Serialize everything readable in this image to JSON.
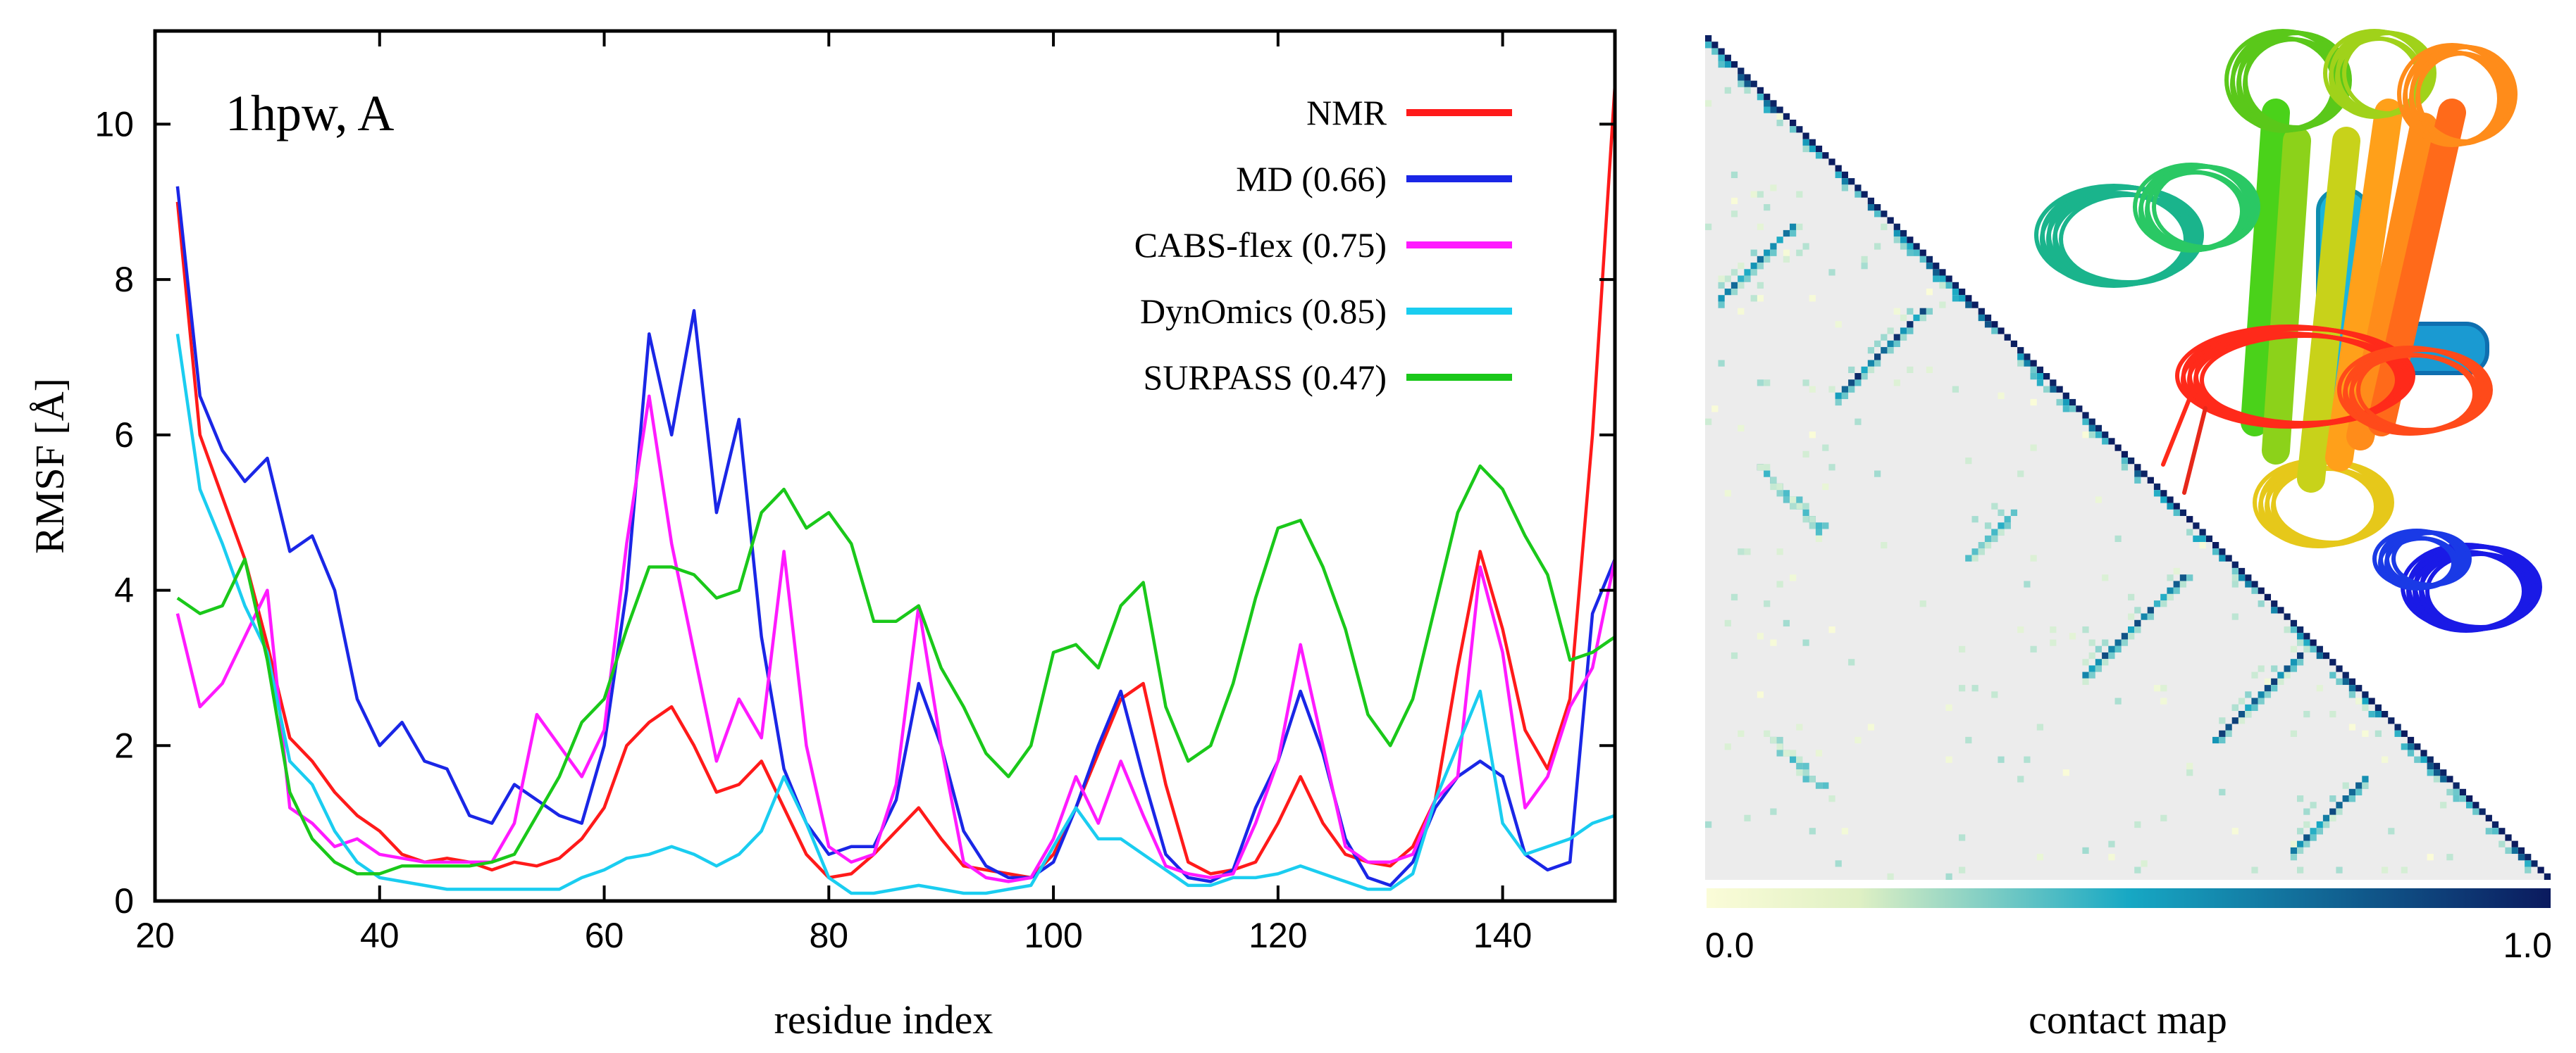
{
  "chart_data": [
    {
      "type": "line",
      "title": "1hpw, A",
      "xlabel": "residue index",
      "ylabel": "RMSF [Å]",
      "xlim": [
        20,
        150
      ],
      "ylim": [
        0,
        11.2
      ],
      "xticks": [
        20,
        40,
        60,
        80,
        100,
        120,
        140
      ],
      "yticks": [
        0,
        2,
        4,
        6,
        8,
        10
      ],
      "legend_position": "top-right",
      "x": [
        22,
        24,
        26,
        28,
        30,
        32,
        34,
        36,
        38,
        40,
        42,
        44,
        46,
        48,
        50,
        52,
        54,
        56,
        58,
        60,
        62,
        64,
        66,
        68,
        70,
        72,
        74,
        76,
        78,
        80,
        82,
        84,
        86,
        88,
        90,
        92,
        94,
        96,
        98,
        100,
        102,
        104,
        106,
        108,
        110,
        112,
        114,
        116,
        118,
        120,
        122,
        124,
        126,
        128,
        130,
        132,
        134,
        136,
        138,
        140,
        142,
        144,
        146,
        148,
        150
      ],
      "series": [
        {
          "name": "NMR",
          "label": "NMR",
          "color": "#ff1a1a",
          "values": [
            9.0,
            6.0,
            5.2,
            4.4,
            3.3,
            2.1,
            1.8,
            1.4,
            1.1,
            0.9,
            0.6,
            0.5,
            0.55,
            0.5,
            0.4,
            0.5,
            0.45,
            0.55,
            0.8,
            1.2,
            2.0,
            2.3,
            2.5,
            2.0,
            1.4,
            1.5,
            1.8,
            1.2,
            0.6,
            0.3,
            0.35,
            0.6,
            0.9,
            1.2,
            0.8,
            0.45,
            0.4,
            0.35,
            0.3,
            0.6,
            1.2,
            1.9,
            2.6,
            2.8,
            1.5,
            0.5,
            0.35,
            0.4,
            0.5,
            1.0,
            1.6,
            1.0,
            0.6,
            0.5,
            0.45,
            0.7,
            1.3,
            3.0,
            4.5,
            3.5,
            2.2,
            1.7,
            2.6,
            6.0,
            10.5
          ]
        },
        {
          "name": "MD",
          "label": "MD (0.66)",
          "color": "#1a26e6",
          "values": [
            9.2,
            6.5,
            5.8,
            5.4,
            5.7,
            4.5,
            4.7,
            4.0,
            2.6,
            2.0,
            2.3,
            1.8,
            1.7,
            1.1,
            1.0,
            1.5,
            1.3,
            1.1,
            1.0,
            2.0,
            4.0,
            7.3,
            6.0,
            7.6,
            5.0,
            6.2,
            3.4,
            1.7,
            1.0,
            0.6,
            0.7,
            0.7,
            1.3,
            2.8,
            2.0,
            0.9,
            0.45,
            0.3,
            0.3,
            0.5,
            1.2,
            2.0,
            2.7,
            1.6,
            0.6,
            0.3,
            0.25,
            0.4,
            1.2,
            1.8,
            2.7,
            1.9,
            0.8,
            0.3,
            0.2,
            0.5,
            1.2,
            1.6,
            1.8,
            1.6,
            0.6,
            0.4,
            0.5,
            3.7,
            4.4
          ]
        },
        {
          "name": "CABS-flex",
          "label": "CABS-flex (0.75)",
          "color": "#ff1aff",
          "values": [
            3.7,
            2.5,
            2.8,
            3.4,
            4.0,
            1.2,
            1.0,
            0.7,
            0.8,
            0.6,
            0.55,
            0.5,
            0.5,
            0.5,
            0.5,
            1.0,
            2.4,
            2.0,
            1.6,
            2.2,
            4.6,
            6.5,
            4.6,
            3.2,
            1.8,
            2.6,
            2.1,
            4.5,
            2.0,
            0.7,
            0.5,
            0.6,
            1.5,
            3.8,
            2.0,
            0.5,
            0.3,
            0.25,
            0.3,
            0.8,
            1.6,
            1.0,
            1.8,
            1.1,
            0.45,
            0.35,
            0.3,
            0.35,
            1.0,
            1.8,
            3.3,
            2.0,
            0.7,
            0.5,
            0.5,
            0.6,
            1.3,
            1.6,
            4.3,
            3.2,
            1.2,
            1.6,
            2.5,
            3.0,
            4.4
          ]
        },
        {
          "name": "DynOmics",
          "label": "DynOmics (0.85)",
          "color": "#1acdf0",
          "values": [
            7.3,
            5.3,
            4.6,
            3.8,
            3.2,
            1.8,
            1.5,
            0.9,
            0.5,
            0.3,
            0.25,
            0.2,
            0.15,
            0.15,
            0.15,
            0.15,
            0.15,
            0.15,
            0.3,
            0.4,
            0.55,
            0.6,
            0.7,
            0.6,
            0.45,
            0.6,
            0.9,
            1.6,
            1.0,
            0.3,
            0.1,
            0.1,
            0.15,
            0.2,
            0.15,
            0.1,
            0.1,
            0.15,
            0.2,
            0.7,
            1.2,
            0.8,
            0.8,
            0.6,
            0.4,
            0.2,
            0.2,
            0.3,
            0.3,
            0.35,
            0.45,
            0.35,
            0.25,
            0.15,
            0.15,
            0.35,
            1.3,
            2.0,
            2.7,
            1.0,
            0.6,
            0.7,
            0.8,
            1.0,
            1.1
          ]
        },
        {
          "name": "SURPASS",
          "label": "SURPASS (0.47)",
          "color": "#1ac81a",
          "values": [
            3.9,
            3.7,
            3.8,
            4.4,
            3.1,
            1.4,
            0.8,
            0.5,
            0.35,
            0.35,
            0.45,
            0.45,
            0.45,
            0.45,
            0.5,
            0.6,
            1.1,
            1.6,
            2.3,
            2.6,
            3.5,
            4.3,
            4.3,
            4.2,
            3.9,
            4.0,
            5.0,
            5.3,
            4.8,
            5.0,
            4.6,
            3.6,
            3.6,
            3.8,
            3.0,
            2.5,
            1.9,
            1.6,
            2.0,
            3.2,
            3.3,
            3.0,
            3.8,
            4.1,
            2.5,
            1.8,
            2.0,
            2.8,
            3.9,
            4.8,
            4.9,
            4.3,
            3.5,
            2.4,
            2.0,
            2.6,
            3.8,
            5.0,
            5.6,
            5.3,
            4.7,
            4.2,
            3.1,
            3.2,
            3.4
          ]
        }
      ]
    },
    {
      "type": "heatmap",
      "title": "contact map",
      "xlabel": "contact map",
      "colorbar": {
        "min_label": "0.0",
        "max_label": "1.0",
        "colors": [
          "#fbfcd8",
          "#17a8c4",
          "#0b1a5e"
        ]
      },
      "size": 130,
      "background_color": "#ececec",
      "contact_bands": [
        {
          "residue_a": 22,
          "residue_b": 60,
          "length": 12,
          "orientation": "antiparallel",
          "strength": 0.6
        },
        {
          "residue_a": 28,
          "residue_b": 86,
          "length": 10,
          "orientation": "parallel",
          "strength": 0.55
        },
        {
          "residue_a": 40,
          "residue_b": 75,
          "length": 14,
          "orientation": "antiparallel",
          "strength": 0.8
        },
        {
          "residue_a": 78,
          "residue_b": 118,
          "length": 16,
          "orientation": "antiparallel",
          "strength": 0.7
        },
        {
          "residue_a": 98,
          "residue_b": 128,
          "length": 14,
          "orientation": "antiparallel",
          "strength": 0.75
        },
        {
          "residue_a": 110,
          "residue_b": 145,
          "length": 12,
          "orientation": "antiparallel",
          "strength": 0.7
        },
        {
          "residue_a": 30,
          "residue_b": 128,
          "length": 8,
          "orientation": "parallel",
          "strength": 0.45
        },
        {
          "residue_a": 60,
          "residue_b": 100,
          "length": 8,
          "orientation": "antiparallel",
          "strength": 0.4
        }
      ]
    }
  ],
  "structure_image": {
    "description_icon": "protein-ensemble-cartoon",
    "colors": [
      "#1a1ae6",
      "#1a9ae6",
      "#1ac8a0",
      "#4ad21a",
      "#c8d21a",
      "#ff8c1a",
      "#ff2a1a"
    ]
  }
}
